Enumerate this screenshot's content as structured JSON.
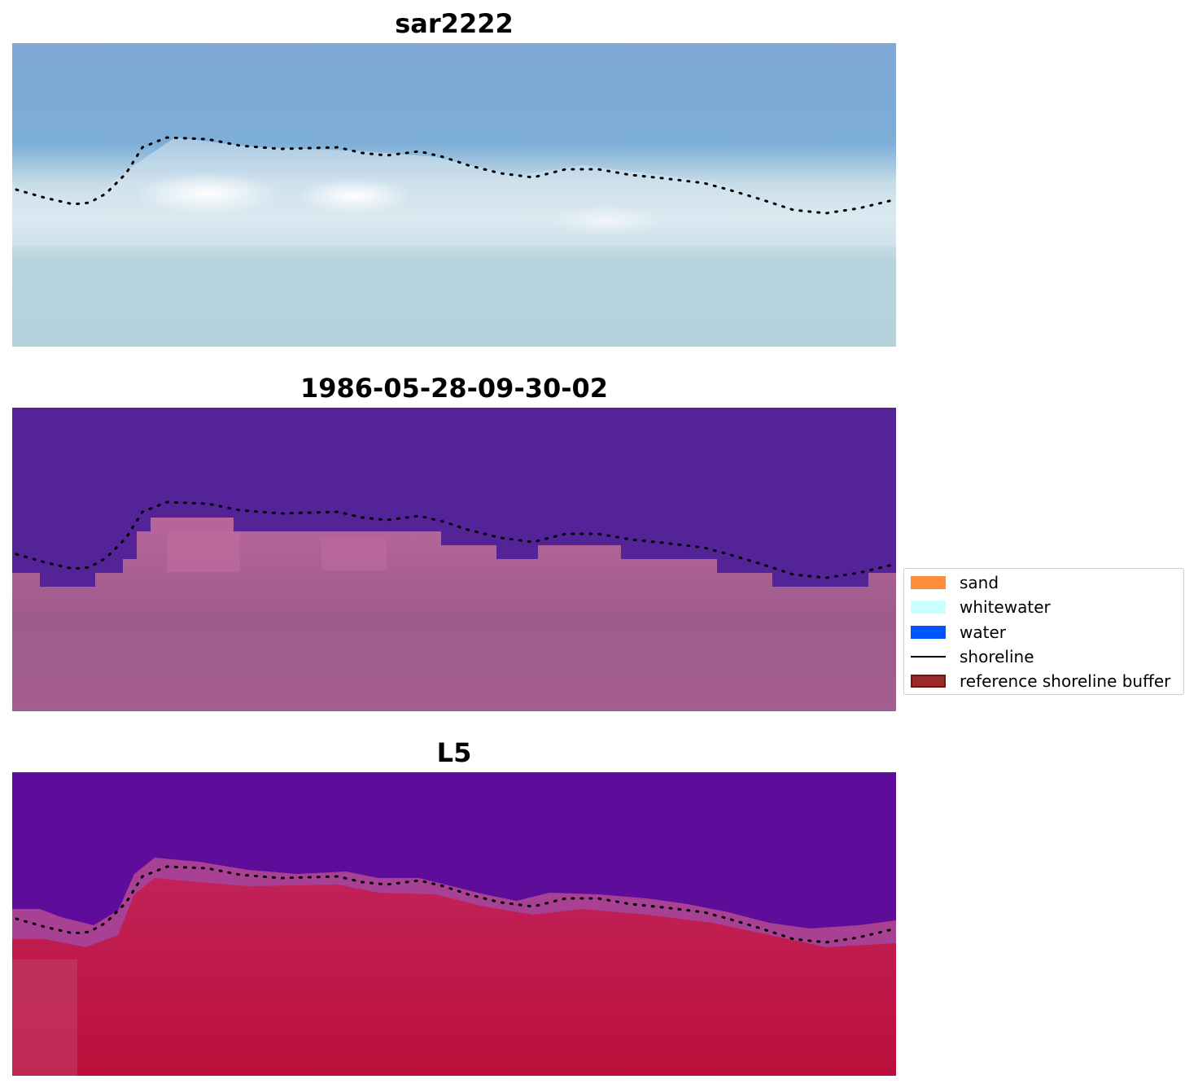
{
  "panels": [
    {
      "title": "sar2222"
    },
    {
      "title": "1986-05-28-09-30-02"
    },
    {
      "title": "L5"
    }
  ],
  "legend": {
    "items": [
      {
        "label": "sand",
        "color": "#ff8c3c"
      },
      {
        "label": "whitewater",
        "color": "#c8ffff"
      },
      {
        "label": "water",
        "color": "#0055ff"
      },
      {
        "label": "shoreline",
        "color": "#000000"
      },
      {
        "label": "reference shoreline buffer",
        "color": "#9a2a2a"
      }
    ]
  }
}
